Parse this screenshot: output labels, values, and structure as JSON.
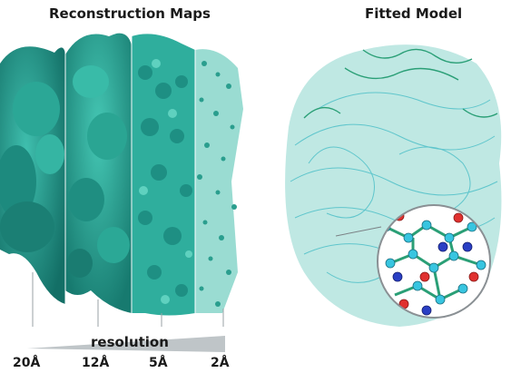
{
  "titles": {
    "left": "Reconstruction Maps",
    "right": "Fitted Model"
  },
  "resolution": {
    "label": "resolution",
    "ticks": [
      "20Å",
      "12Å",
      "5Å",
      "2Å"
    ]
  },
  "colors": {
    "map_dark": "#1e8f83",
    "map_mid": "#2fae9d",
    "map_light": "#4cc6b4",
    "model_green": "#2a9f76",
    "model_cyan": "#4fc0c8",
    "atom_cyan": "#38c5e0",
    "atom_red": "#e0312f",
    "atom_blue": "#2a3fc4",
    "wedge": "#bfc5c8"
  }
}
